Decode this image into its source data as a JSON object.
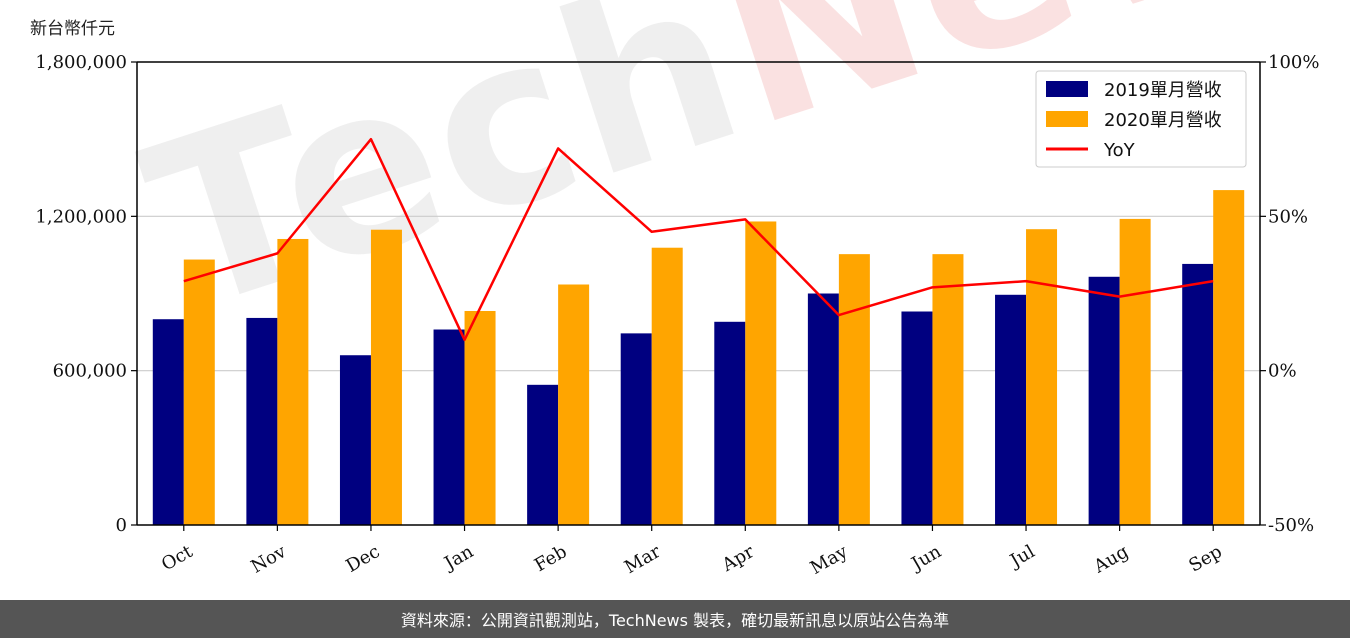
{
  "unit_label": "新台幣仟元",
  "watermark": {
    "part1": "Tech",
    "part2": "News"
  },
  "footer_text": "資料來源：公開資訊觀測站，TechNews 製表，確切最新訊息以原站公告為準",
  "colors": {
    "s2019": "#000080",
    "s2020": "#FFA500",
    "yoy": "#FF0000",
    "grid": "#cccccc"
  },
  "chart_data": {
    "type": "bar",
    "categories": [
      "Oct",
      "Nov",
      "Dec",
      "Jan",
      "Feb",
      "Mar",
      "Apr",
      "May",
      "Jun",
      "Jul",
      "Aug",
      "Sep"
    ],
    "series": [
      {
        "name": "2019單月營收",
        "type": "bar",
        "axis": "left",
        "values": [
          800000,
          805000,
          660000,
          760000,
          545000,
          745000,
          790000,
          900000,
          830000,
          895000,
          965000,
          1015000
        ]
      },
      {
        "name": "2020單月營收",
        "type": "bar",
        "axis": "left",
        "values": [
          1032000,
          1112000,
          1148000,
          832000,
          935000,
          1078000,
          1180000,
          1053000,
          1053000,
          1150000,
          1190000,
          1302000
        ]
      },
      {
        "name": "YoY",
        "type": "line",
        "axis": "right",
        "values": [
          29,
          38,
          75,
          10,
          72,
          45,
          49,
          18,
          27,
          29,
          24,
          29
        ]
      }
    ],
    "yleft": {
      "min": 0,
      "max": 1800000,
      "ticks": [
        "0",
        "600,000",
        "1,200,000",
        "1,800,000"
      ],
      "tick_values": [
        0,
        600000,
        1200000,
        1800000
      ]
    },
    "yright": {
      "min": -50,
      "max": 100,
      "ticks": [
        "-50%",
        "0%",
        "50%",
        "100%"
      ],
      "tick_values": [
        -50,
        0,
        50,
        100
      ]
    },
    "grid": true,
    "legend": "top-right"
  }
}
